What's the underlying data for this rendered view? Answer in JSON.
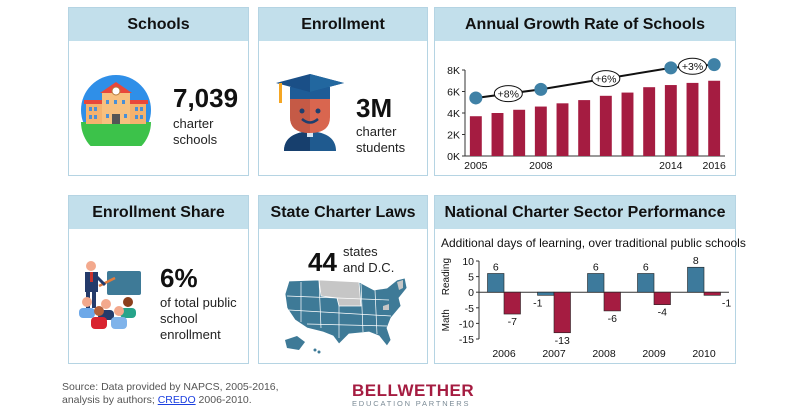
{
  "cards": {
    "schools": {
      "title": "Schools",
      "value": "7,039",
      "line1": "charter",
      "line2": "schools",
      "icon": "school-building-icon"
    },
    "enrollment": {
      "title": "Enrollment",
      "value": "3M",
      "line1": "charter",
      "line2": "students",
      "icon": "graduate-icon"
    },
    "growth": {
      "title": "Annual Growth Rate of Schools"
    },
    "share": {
      "title": "Enrollment Share",
      "value": "6%",
      "line1": "of total public",
      "line2": "school",
      "line3": "enrollment",
      "icon": "teacher-classroom-icon"
    },
    "laws": {
      "title": "State Charter Laws",
      "value": "44",
      "line1": "states",
      "line2": "and D.C.",
      "icon": "us-map-icon"
    },
    "performance": {
      "title": "National Charter Sector Performance",
      "subtitle": "Additional days of learning, over traditional public schools"
    }
  },
  "colors": {
    "header": "#c2dfeb",
    "border": "#b5d4e3",
    "bar_red": "#a51c41",
    "bar_blue": "#3d7a9c",
    "dot_blue": "#3f81a6"
  },
  "chart_data": [
    {
      "type": "bar",
      "title": "Annual Growth Rate of Schools",
      "categories": [
        "2005",
        "2006",
        "2007",
        "2008",
        "2009",
        "2010",
        "2011",
        "2012",
        "2013",
        "2014",
        "2015",
        "2016"
      ],
      "values": [
        3.7,
        4.0,
        4.3,
        4.6,
        4.9,
        5.2,
        5.6,
        5.9,
        6.4,
        6.6,
        6.8,
        7.0
      ],
      "unit": "K schools",
      "xtick_labels": [
        "2005",
        "2008",
        "2014",
        "2016"
      ],
      "ytick_labels": [
        "0K",
        "2K",
        "4K",
        "6K",
        "8K"
      ],
      "ylim": [
        0,
        8
      ],
      "trend_line": {
        "points": [
          {
            "x": "2005",
            "y": 5.4
          },
          {
            "x": "2008",
            "y": 6.2
          },
          {
            "x": "2014",
            "y": 8.2
          },
          {
            "x": "2016",
            "y": 8.5
          }
        ],
        "annotations": [
          {
            "between": [
              "2005",
              "2008"
            ],
            "label": "+8%"
          },
          {
            "between": [
              "2008",
              "2014"
            ],
            "label": "+6%"
          },
          {
            "between": [
              "2014",
              "2016"
            ],
            "label": "+3%"
          }
        ]
      }
    },
    {
      "type": "bar",
      "title": "National Charter Sector Performance",
      "subtitle": "Additional days of learning, over traditional public schools",
      "categories": [
        "2006",
        "2007",
        "2008",
        "2009",
        "2010"
      ],
      "series": [
        {
          "name": "Reading",
          "values": [
            6,
            -1,
            6,
            6,
            8
          ]
        },
        {
          "name": "Math",
          "values": [
            -7,
            -13,
            -6,
            -4,
            -1
          ]
        }
      ],
      "ylabel_top": "Reading",
      "ylabel_bottom": "Math",
      "ytick_labels": [
        "10",
        "5",
        "0",
        "-5",
        "-10",
        "-15"
      ],
      "ylim": [
        -15,
        10
      ]
    }
  ],
  "footer": {
    "source_line1": "Source: Data provided by NAPCS, 2005-2016,",
    "source_line2_pre": "analysis by authors; ",
    "source_link": "CREDO",
    "source_line2_post": " 2006-2010.",
    "logo_main": "BELLWETHER",
    "logo_sub": "EDUCATION PARTNERS"
  }
}
